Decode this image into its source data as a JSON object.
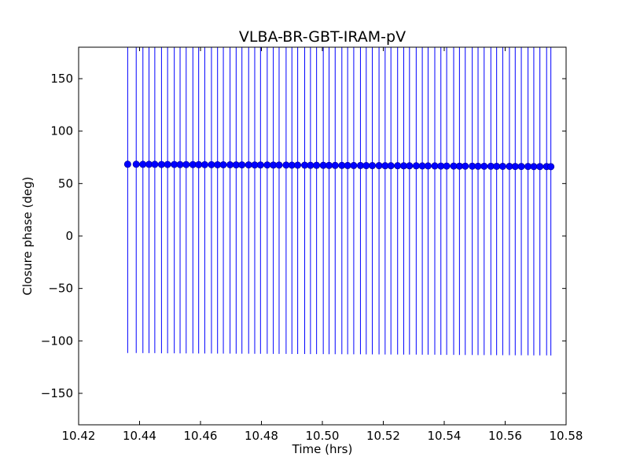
{
  "chart_data": {
    "type": "scatter",
    "title": "VLBA-BR-GBT-IRAM-pV",
    "xlabel": "Time (hrs)",
    "ylabel": "Closure phase (deg)",
    "xlim": [
      10.42,
      10.58
    ],
    "ylim": [
      -180,
      180
    ],
    "grid": false,
    "xticks": [
      10.42,
      10.44,
      10.46,
      10.48,
      10.5,
      10.52,
      10.54,
      10.56,
      10.58
    ],
    "xtick_labels": [
      "10.42",
      "10.44",
      "10.46",
      "10.48",
      "10.50",
      "10.52",
      "10.54",
      "10.56",
      "10.58"
    ],
    "yticks": [
      -150,
      -100,
      -50,
      0,
      50,
      100,
      150
    ],
    "ytick_labels": [
      "−150",
      "−100",
      "−50",
      "0",
      "50",
      "100",
      "150"
    ],
    "colors": {
      "series": "#0000ff",
      "axes": "#000000"
    },
    "series": [
      {
        "x": [
          10.4361,
          10.4389,
          10.4411,
          10.4431,
          10.445,
          10.4472,
          10.4492,
          10.4514,
          10.4533,
          10.4553,
          10.4575,
          10.4594,
          10.4614,
          10.4636,
          10.4656,
          10.4675,
          10.4697,
          10.4717,
          10.4736,
          10.4758,
          10.4778,
          10.4797,
          10.4819,
          10.4839,
          10.4858,
          10.4881,
          10.49,
          10.4919,
          10.4942,
          10.4961,
          10.4981,
          10.5003,
          10.5022,
          10.5042,
          10.5064,
          10.5083,
          10.5103,
          10.5125,
          10.5144,
          10.5164,
          10.5186,
          10.5206,
          10.5225,
          10.5247,
          10.5267,
          10.5286,
          10.5308,
          10.5328,
          10.5347,
          10.5369,
          10.5389,
          10.5408,
          10.5431,
          10.545,
          10.5469,
          10.5492,
          10.5511,
          10.5531,
          10.5553,
          10.5572,
          10.5592,
          10.5614,
          10.5633,
          10.5653,
          10.5675,
          10.5694,
          10.5714,
          10.5736,
          10.575
        ],
        "y": [
          68.4,
          68.4,
          68.3,
          68.3,
          68.3,
          68.2,
          68.2,
          68.2,
          68.1,
          68.1,
          68.1,
          68.0,
          68.0,
          68.0,
          67.9,
          67.9,
          67.9,
          67.8,
          67.8,
          67.8,
          67.7,
          67.7,
          67.7,
          67.6,
          67.6,
          67.6,
          67.5,
          67.5,
          67.5,
          67.4,
          67.4,
          67.4,
          67.3,
          67.3,
          67.3,
          67.2,
          67.2,
          67.2,
          67.1,
          67.1,
          67.1,
          67.0,
          67.0,
          67.0,
          66.9,
          66.9,
          66.9,
          66.8,
          66.8,
          66.8,
          66.7,
          66.7,
          66.7,
          66.6,
          66.6,
          66.6,
          66.5,
          66.5,
          66.5,
          66.4,
          66.4,
          66.4,
          66.3,
          66.3,
          66.3,
          66.2,
          66.2,
          66.2,
          66.1
        ],
        "error": 180
      }
    ]
  }
}
